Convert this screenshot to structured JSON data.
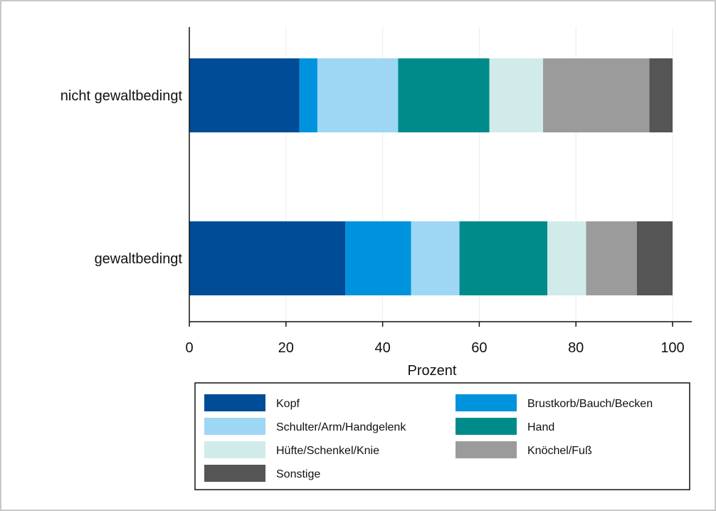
{
  "chart_data": {
    "type": "bar",
    "orientation": "horizontal",
    "stacked": true,
    "title": "",
    "xlabel": "Prozent",
    "ylabel": "",
    "xlim": [
      0,
      100
    ],
    "xticks": [
      "0",
      "20",
      "40",
      "60",
      "80",
      "100"
    ],
    "grid": true,
    "legend_position": "bottom",
    "categories": [
      "nicht gewaltbedingt",
      "gewaltbedingt"
    ],
    "series": [
      {
        "name": "Kopf",
        "color": "#004c97",
        "values": [
          22.8,
          32.3
        ]
      },
      {
        "name": "Brustkorb/Bauch/Becken",
        "color": "#0093dd",
        "values": [
          3.7,
          13.6
        ]
      },
      {
        "name": "Schulter/Arm/Handgelenk",
        "color": "#9dd7f3",
        "values": [
          16.7,
          10.0
        ]
      },
      {
        "name": "Hand",
        "color": "#008b8b",
        "values": [
          18.9,
          18.2
        ]
      },
      {
        "name": "Hüfte/Schenkel/Knie",
        "color": "#d1ebea",
        "values": [
          11.1,
          8.0
        ]
      },
      {
        "name": "Knöchel/Fuß",
        "color": "#9b9b9b",
        "values": [
          22.0,
          10.5
        ]
      },
      {
        "name": "Sonstige",
        "color": "#555555",
        "values": [
          4.8,
          7.4
        ]
      }
    ]
  }
}
